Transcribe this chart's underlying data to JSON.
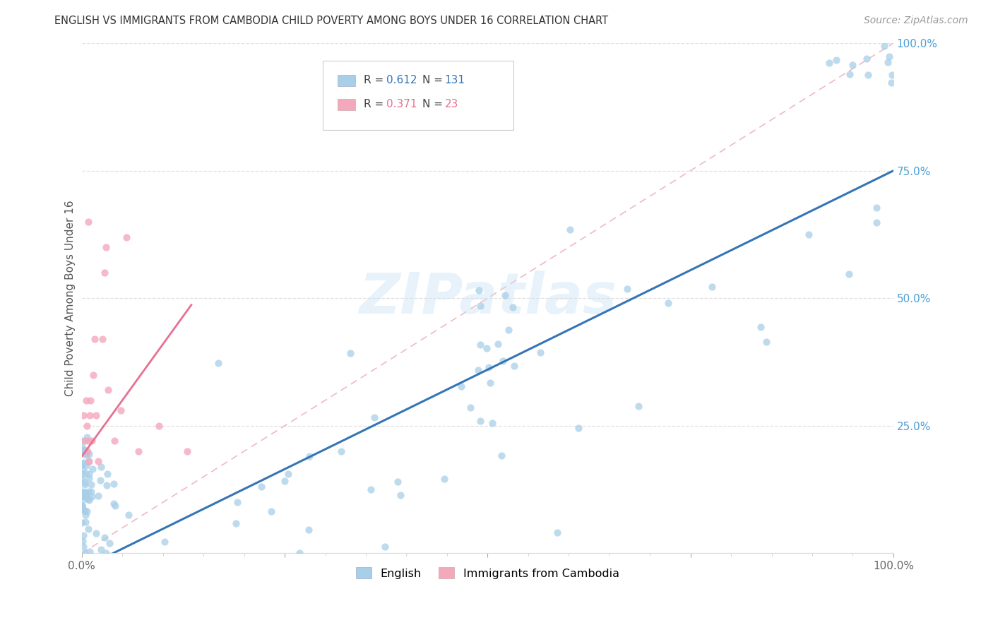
{
  "title": "ENGLISH VS IMMIGRANTS FROM CAMBODIA CHILD POVERTY AMONG BOYS UNDER 16 CORRELATION CHART",
  "source": "Source: ZipAtlas.com",
  "ylabel": "Child Poverty Among Boys Under 16",
  "watermark": "ZIPatlas",
  "english_R": 0.612,
  "english_N": 131,
  "cambodia_R": 0.371,
  "cambodia_N": 23,
  "english_color": "#a8cfe8",
  "cambodia_color": "#f4a8bc",
  "english_line_color": "#3575b5",
  "cambodia_line_color": "#e87090",
  "diagonal_color": "#f0b8c8",
  "background_color": "#ffffff",
  "xlim": [
    0.0,
    1.0
  ],
  "ylim": [
    0.0,
    1.0
  ],
  "legend_english_color": "#a8cfe8",
  "legend_cambodia_color": "#f4a8bc",
  "legend_english_text_color": "#3575b5",
  "legend_cambodia_text_color": "#e87090"
}
